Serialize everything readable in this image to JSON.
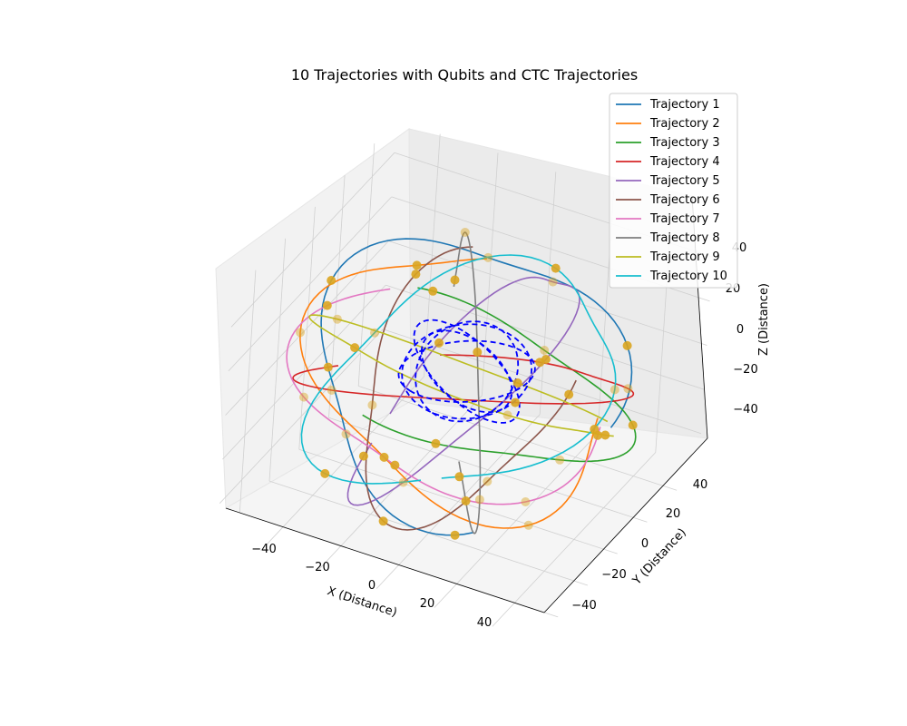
{
  "chart_data": {
    "type": "line",
    "projection": "3d",
    "title": "10 Trajectories with Qubits and CTC Trajectories",
    "xlabel": "X (Distance)",
    "ylabel": "Y (Distance)",
    "zlabel": "Z (Distance)",
    "x_ticks": [
      "−40",
      "−20",
      "0",
      "20",
      "40"
    ],
    "y_ticks": [
      "−40",
      "−20",
      "0",
      "20",
      "40"
    ],
    "z_ticks": [
      "−40",
      "−20",
      "0",
      "20",
      "40"
    ],
    "xlim": [
      -55,
      55
    ],
    "ylim": [
      -55,
      55
    ],
    "zlim": [
      -55,
      55
    ],
    "grid": true,
    "legend_position": "top-right",
    "qubit_marker_color": "#DAA520",
    "ctc_color": "#0000FF",
    "ctc_style": "dashed",
    "series": [
      {
        "name": "Trajectory 1",
        "color": "#1f77b4"
      },
      {
        "name": "Trajectory 2",
        "color": "#ff7f0e"
      },
      {
        "name": "Trajectory 3",
        "color": "#2ca02c"
      },
      {
        "name": "Trajectory 4",
        "color": "#d62728"
      },
      {
        "name": "Trajectory 5",
        "color": "#9467bd"
      },
      {
        "name": "Trajectory 6",
        "color": "#8c564b"
      },
      {
        "name": "Trajectory 7",
        "color": "#e377c2"
      },
      {
        "name": "Trajectory 8",
        "color": "#7f7f7f"
      },
      {
        "name": "Trajectory 9",
        "color": "#bcbd22"
      },
      {
        "name": "Trajectory 10",
        "color": "#17becf"
      }
    ]
  }
}
